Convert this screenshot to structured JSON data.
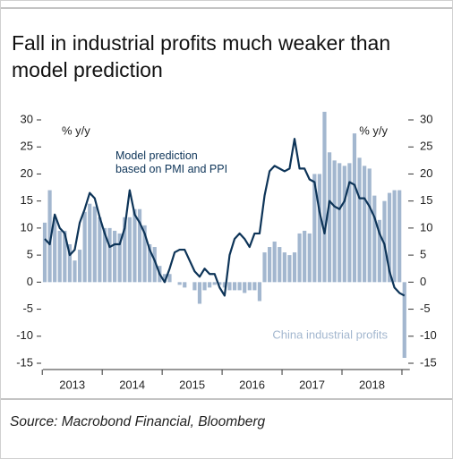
{
  "chart_data": {
    "type": "bar_line",
    "title": "Fall in industrial profits much weaker than model prediction",
    "source": "Source: Macrobond Financial, Bloomberg",
    "y_label": "% y/y",
    "y2_label": "% y/y",
    "categories": [
      null,
      null,
      null,
      null,
      null,
      null,
      "2013",
      null,
      null,
      null,
      null,
      null,
      null,
      null,
      null,
      null,
      null,
      null,
      "2014",
      null,
      null,
      null,
      null,
      null,
      null,
      null,
      null,
      null,
      null,
      null,
      "2015",
      null,
      null,
      null,
      null,
      null,
      null,
      null,
      null,
      null,
      null,
      null,
      "2016",
      null,
      null,
      null,
      null,
      null,
      null,
      null,
      null,
      null,
      null,
      null,
      "2017",
      null,
      null,
      null,
      null,
      null,
      null,
      null,
      null,
      null,
      null,
      null,
      "2018",
      null,
      null,
      null,
      null,
      null,
      null
    ],
    "series": [
      {
        "name": "China industrial profits",
        "type": "bar",
        "axis": "y2",
        "color": "#a3b7cf",
        "values": [
          11,
          17,
          12,
          9.5,
          9.5,
          7,
          4,
          6,
          13,
          14.5,
          14,
          12,
          10,
          10,
          9.5,
          9,
          12,
          12,
          13.5,
          13.5,
          10.5,
          7,
          6.5,
          3,
          1.5,
          1.5,
          0,
          -0.5,
          -1,
          0,
          -1.5,
          -4,
          -1.5,
          -1,
          -0.5,
          -0.5,
          -1,
          -1.5,
          -1.5,
          -1.5,
          -2,
          -1.5,
          -1.5,
          -3.5,
          5.5,
          6.5,
          7.5,
          6.5,
          5.5,
          5,
          5.5,
          9,
          9.5,
          9,
          20,
          20,
          31.5,
          24,
          22.5,
          22,
          21.5,
          22,
          27.5,
          23,
          21.5,
          21,
          16,
          11.5,
          15,
          16.5,
          17,
          17,
          -14
        ]
      },
      {
        "name": "Model prediction based on PMI and PPI",
        "type": "line",
        "axis": "y",
        "color": "#0d3458",
        "values": [
          8,
          7,
          12.5,
          10,
          9,
          5,
          6,
          11,
          13.5,
          16.5,
          15.5,
          12,
          9,
          6.5,
          7,
          7,
          10,
          17,
          12.5,
          11,
          9,
          6,
          4,
          1.5,
          0,
          2.5,
          5.5,
          6,
          6,
          4,
          2,
          1,
          2.5,
          1.5,
          1.5,
          -1,
          -2.5,
          5,
          8,
          9,
          8,
          6.5,
          9,
          9,
          16,
          20.5,
          21.5,
          21,
          20.5,
          21,
          26.5,
          21,
          21,
          19,
          18.5,
          13,
          9,
          15,
          14,
          13.5,
          15,
          18.5,
          18,
          15.5,
          15.5,
          14,
          12,
          9,
          7,
          2,
          -1,
          -2,
          -2.5
        ]
      }
    ],
    "ylim": [
      -15,
      30
    ],
    "yticks": [
      -15,
      -10,
      -5,
      0,
      5,
      10,
      15,
      20,
      25,
      30
    ],
    "y2lim": [
      -15,
      30
    ],
    "y2ticks": [
      -15,
      -10,
      -5,
      0,
      5,
      10,
      15,
      20,
      25,
      30
    ]
  }
}
